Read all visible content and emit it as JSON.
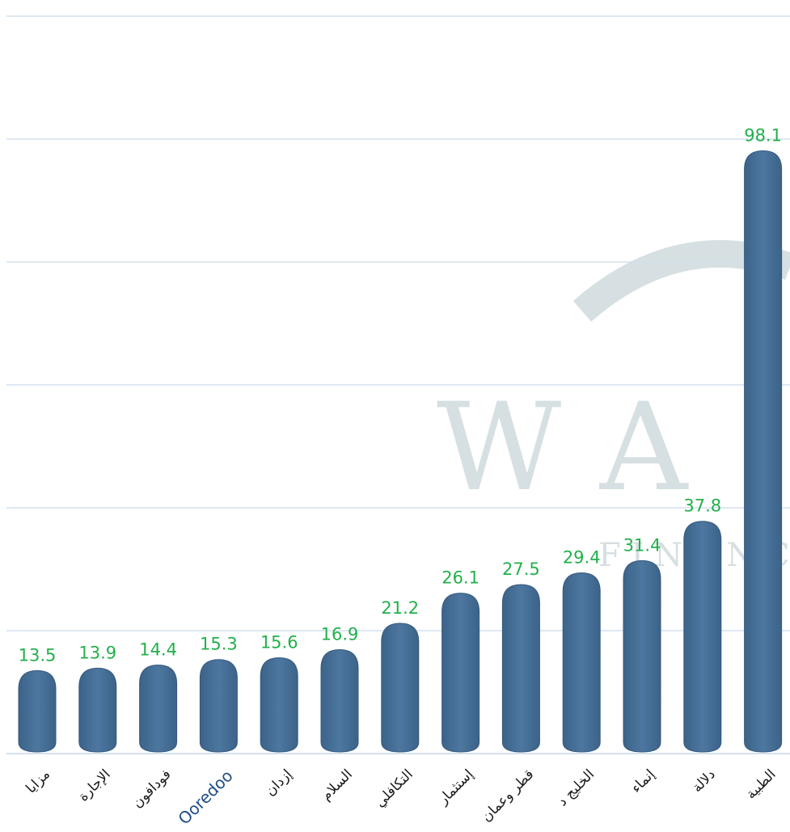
{
  "chart_data": {
    "type": "bar",
    "categories": [
      "مزايا",
      "الإجارة",
      "فودافون",
      "Ooredoo",
      "إزدان",
      "السلام",
      "التكافلي",
      "إستثمار",
      "قطر وعمان",
      "الخليج د",
      "إنماء",
      "دلالة",
      "الطبية"
    ],
    "values": [
      13.5,
      13.9,
      14.4,
      15.3,
      15.6,
      16.9,
      21.2,
      26.1,
      27.5,
      29.4,
      31.4,
      37.8,
      98.1
    ],
    "title": "",
    "xlabel": "",
    "ylabel": "",
    "ylim": [
      0,
      120
    ],
    "grid": true,
    "legend": "none",
    "data_labels": true
  },
  "colors": {
    "bar": "#466f95",
    "bar_highlight": "#5a84aa",
    "value_label": "#22b04b",
    "gridline": "#d4e0ee",
    "watermark": "#cfd9dc"
  },
  "watermark": {
    "text_main": "W  A",
    "text_sub": "F I N A N C"
  }
}
